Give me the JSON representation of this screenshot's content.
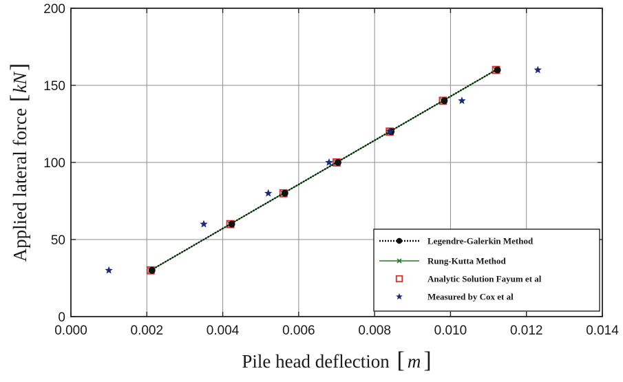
{
  "chart_data": {
    "type": "line",
    "title": "",
    "xlabel_text": "Pile head deflection",
    "xlabel_unit": "m",
    "ylabel_text": "Applied lateral force",
    "ylabel_unit": "kN",
    "xlim": [
      0,
      0.014
    ],
    "ylim": [
      0,
      200
    ],
    "x_ticks": [
      "0.000",
      "0.002",
      "0.004",
      "0.006",
      "0.008",
      "0.010",
      "0.012",
      "0.014"
    ],
    "y_ticks": [
      "0",
      "50",
      "100",
      "150",
      "200"
    ],
    "grid": true,
    "legend_position": "bottom-right",
    "series": [
      {
        "name": "Legendre-Galerkin Method",
        "marker": "filled-circle",
        "line": "dotted",
        "color": "#111111",
        "points": [
          [
            0.0021,
            30
          ],
          [
            0.0042,
            60
          ],
          [
            0.0056,
            80
          ],
          [
            0.007,
            100
          ],
          [
            0.0084,
            120
          ],
          [
            0.0098,
            140
          ],
          [
            0.0112,
            160
          ]
        ]
      },
      {
        "name": "Rung-Kutta Method",
        "marker": "x",
        "line": "solid",
        "color": "#1f7a1f",
        "points": [
          [
            0.0021,
            30
          ],
          [
            0.0042,
            60
          ],
          [
            0.0056,
            80
          ],
          [
            0.007,
            100
          ],
          [
            0.0084,
            120
          ],
          [
            0.0098,
            140
          ],
          [
            0.0112,
            160
          ]
        ]
      },
      {
        "name": "Analytic Solution Fayum et al",
        "marker": "square",
        "line": "none",
        "color": "#e0282a",
        "points": [
          [
            0.0021,
            30
          ],
          [
            0.0042,
            60
          ],
          [
            0.0056,
            80
          ],
          [
            0.007,
            100
          ],
          [
            0.0084,
            120
          ],
          [
            0.0098,
            140
          ],
          [
            0.0112,
            160
          ]
        ]
      },
      {
        "name": "Measured by Cox et al",
        "marker": "star",
        "line": "none",
        "color": "#1c2a7a",
        "points": [
          [
            0.001,
            30
          ],
          [
            0.0035,
            60
          ],
          [
            0.0052,
            80
          ],
          [
            0.0068,
            100
          ],
          [
            0.0084,
            120
          ],
          [
            0.0103,
            140
          ],
          [
            0.0123,
            160
          ]
        ]
      }
    ]
  }
}
